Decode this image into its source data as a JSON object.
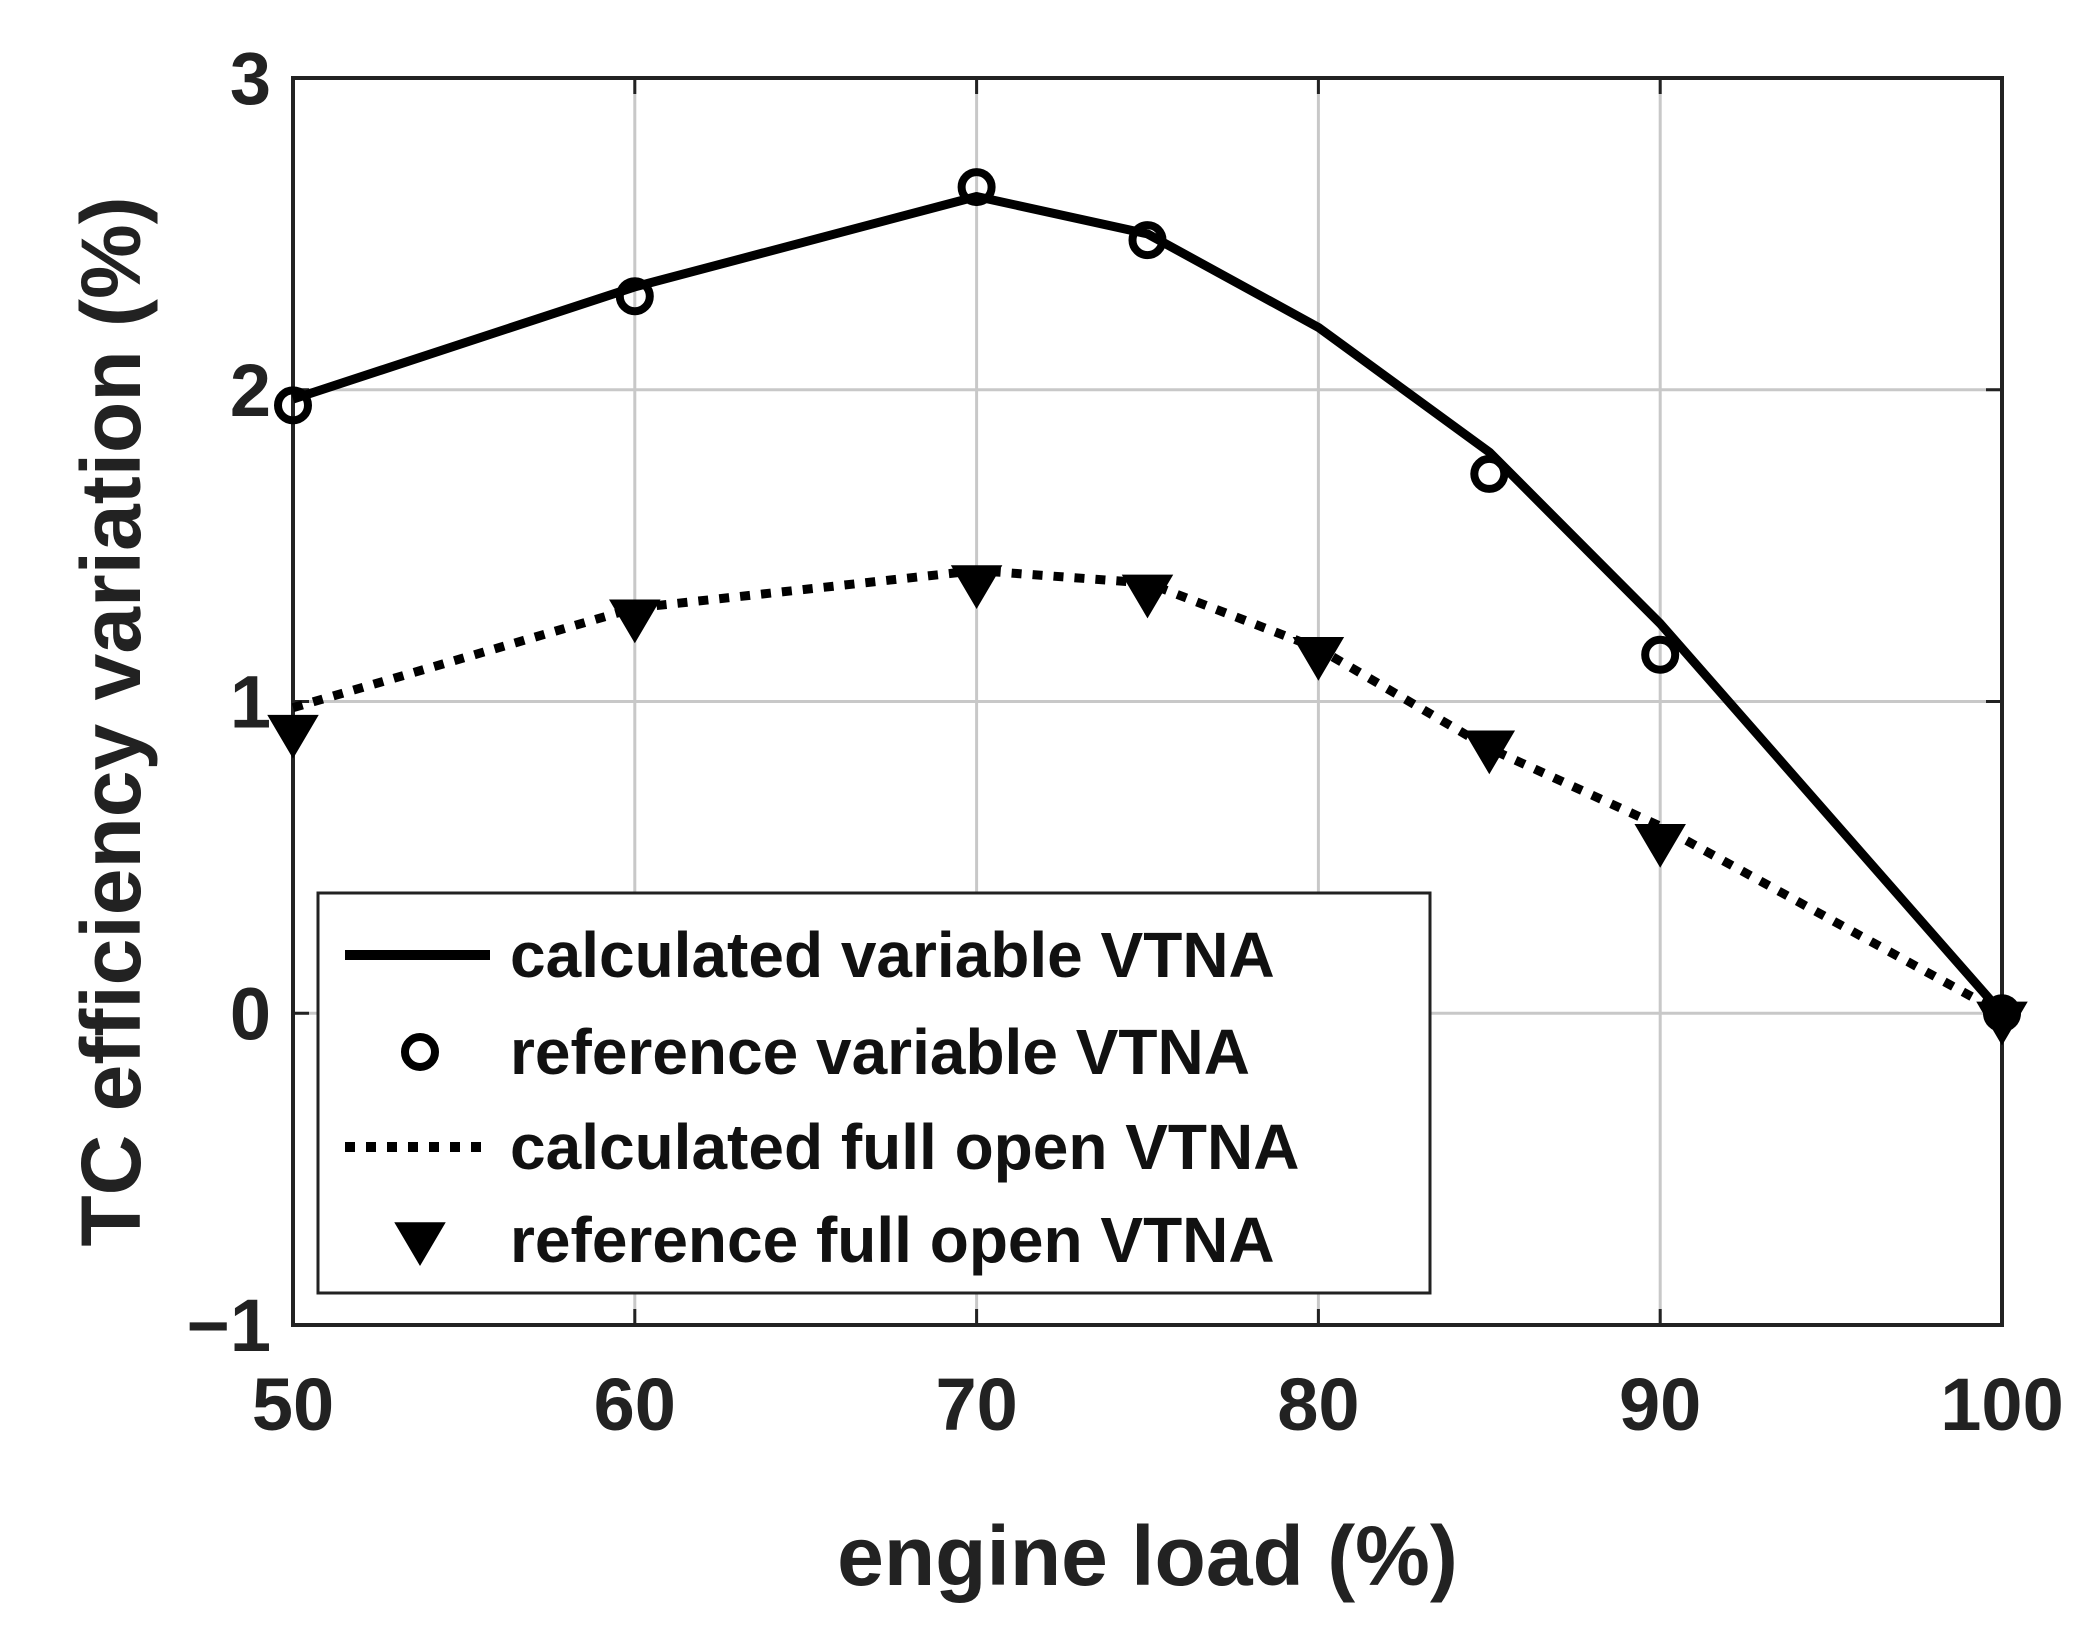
{
  "chart_data": {
    "type": "line",
    "title": "",
    "xlabel": "engine load (%)",
    "ylabel": "TC  efficiency variation (%)",
    "xlim": [
      50,
      100
    ],
    "ylim": [
      -1,
      3
    ],
    "xticks": [
      50,
      60,
      70,
      80,
      90,
      100
    ],
    "yticks": [
      -1,
      0,
      1,
      2,
      3
    ],
    "xtick_labels": [
      "50",
      "60",
      "70",
      "80",
      "90",
      "100"
    ],
    "ytick_labels": [
      "−1",
      "0",
      "1",
      "2",
      "3"
    ],
    "grid": true,
    "legend_position": "bottom-left",
    "series": [
      {
        "name": "calculated variable VTNA",
        "style": "solid-line",
        "x": [
          50,
          60,
          70,
          75,
          80,
          85,
          90,
          100
        ],
        "y": [
          1.97,
          2.33,
          2.62,
          2.5,
          2.2,
          1.8,
          1.25,
          0.0
        ]
      },
      {
        "name": "reference variable VTNA",
        "style": "circle-marker",
        "x": [
          50,
          60,
          70,
          75,
          85,
          90,
          100
        ],
        "y": [
          1.95,
          2.3,
          2.65,
          2.48,
          1.73,
          1.15,
          0.0
        ]
      },
      {
        "name": "calculated full open VTNA",
        "style": "dotted-line",
        "x": [
          50,
          60,
          70,
          75,
          80,
          85,
          90,
          100
        ],
        "y": [
          0.98,
          1.3,
          1.42,
          1.38,
          1.17,
          0.85,
          0.6,
          0.0
        ]
      },
      {
        "name": "reference full open VTNA",
        "style": "triangle-marker",
        "x": [
          50,
          60,
          70,
          75,
          80,
          85,
          90,
          100
        ],
        "y": [
          0.9,
          1.27,
          1.38,
          1.35,
          1.15,
          0.85,
          0.55,
          -0.02
        ]
      }
    ],
    "colors": {
      "line": "#000000",
      "grid": "#c8c8c8",
      "axes": "#222222"
    }
  }
}
